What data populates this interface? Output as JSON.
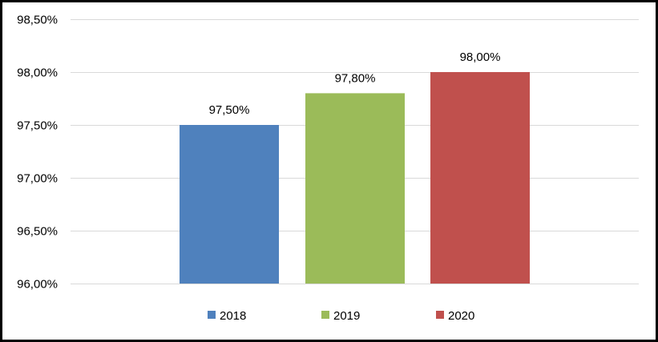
{
  "chart_data": {
    "type": "bar",
    "categories": [
      "2018",
      "2019",
      "2020"
    ],
    "series": [
      {
        "name": "2018",
        "value": 97.5,
        "label": "97,50%",
        "color": "#4f81bd"
      },
      {
        "name": "2019",
        "value": 97.8,
        "label": "97,80%",
        "color": "#9bbb59"
      },
      {
        "name": "2020",
        "value": 98.0,
        "label": "98,00%",
        "color": "#c0504d"
      }
    ],
    "ylim": [
      96.0,
      98.5
    ],
    "yticks": [
      {
        "value": 96.0,
        "label": "96,00%"
      },
      {
        "value": 96.5,
        "label": "96,50%"
      },
      {
        "value": 97.0,
        "label": "97,00%"
      },
      {
        "value": 97.5,
        "label": "97,50%"
      },
      {
        "value": 98.0,
        "label": "98,00%"
      },
      {
        "value": 98.5,
        "label": "98,50%"
      }
    ],
    "grid": true,
    "gridcolor": "#d9d9d9",
    "legend_position": "bottom",
    "title": "",
    "xlabel": "",
    "ylabel": ""
  }
}
